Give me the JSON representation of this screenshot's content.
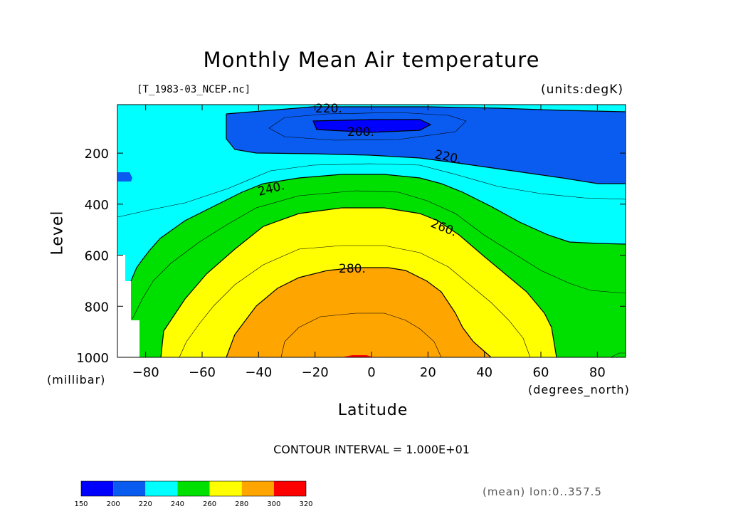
{
  "chart_data": {
    "type": "contour",
    "title": "Monthly Mean Air temperature",
    "file_label": "[T_1983-03_NCEP.nc]",
    "units_label": "(units:degK)",
    "xlabel": "Latitude",
    "xunit": "(degrees_north)",
    "ylabel": "Level",
    "yunit": "(millibar)",
    "xlim": [
      -90,
      90
    ],
    "ylim": [
      1000,
      10
    ],
    "x_ticks": [
      -80,
      -60,
      -40,
      -20,
      0,
      20,
      40,
      60,
      80
    ],
    "x_tick_labels": [
      "−80",
      "−60",
      "−40",
      "−20",
      "0",
      "20",
      "40",
      "60",
      "80"
    ],
    "y_ticks": [
      200,
      400,
      600,
      800,
      1000
    ],
    "y_tick_labels": [
      "200",
      "400",
      "600",
      "800",
      "1000"
    ],
    "contour_interval_text": "CONTOUR INTERVAL = 1.000E+01",
    "footnote": "(mean) lon:0..357.5",
    "contour_labels": [
      {
        "text": "220.",
        "lat": -13,
        "level": 30
      },
      {
        "text": "200.",
        "lat": -3,
        "level": 110
      },
      {
        "text": "220.",
        "lat": 31,
        "level": 210
      },
      {
        "text": "240.",
        "lat": -38,
        "level": 330
      },
      {
        "text": "260.",
        "lat": 28,
        "level": 510
      },
      {
        "text": "280.",
        "lat": -6,
        "level": 640
      }
    ],
    "colorbar": {
      "boundaries": [
        150,
        200,
        220,
        240,
        260,
        280,
        300,
        320
      ],
      "labels": [
        "150",
        "200",
        "220",
        "240",
        "260",
        "280",
        "300",
        "320"
      ],
      "colors": [
        "#0000ff",
        "#0a5cf0",
        "#00ffff",
        "#00e000",
        "#ffff00",
        "#ffa500",
        "#ff0000"
      ]
    },
    "fill_colors": {
      "band_200_220": "#0a5cf0",
      "band_220_240": "#00ffff",
      "band_240_260": "#00e000",
      "band_260_280": "#ffff00",
      "band_280_300": "#ffa500",
      "below_200": "#0000ff",
      "above_300": "#ff0000"
    }
  }
}
